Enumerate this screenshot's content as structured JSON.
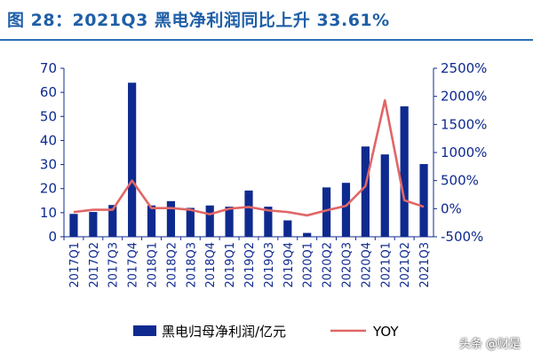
{
  "figure_title": "图 28：2021Q3 黑电净利润同比上升 33.61%",
  "watermark": "头条 @财是",
  "colors": {
    "bar": "#0f2a8f",
    "line": "#e06666",
    "title": "#1f5fa8",
    "axis": "#0f2a8f"
  },
  "chart_data": {
    "type": "bar",
    "title": "图 28：2021Q3 黑电净利润同比上升 33.61%",
    "categories": [
      "2017Q1",
      "2017Q2",
      "2017Q3",
      "2017Q4",
      "2018Q1",
      "2018Q2",
      "2018Q3",
      "2018Q4",
      "2019Q1",
      "2019Q2",
      "2019Q3",
      "2019Q4",
      "2020Q1",
      "2020Q2",
      "2020Q3",
      "2020Q4",
      "2021Q1",
      "2021Q2",
      "2021Q3"
    ],
    "series": [
      {
        "name": "黑电归母净利润/亿元",
        "type": "bar",
        "axis": "left",
        "values": [
          9.5,
          10.3,
          13.2,
          64,
          13,
          14.8,
          12,
          13,
          12.5,
          19.2,
          12.5,
          6.8,
          1.6,
          20.5,
          22.4,
          37.5,
          34.2,
          54.2,
          30.2
        ]
      },
      {
        "name": "YOY",
        "type": "line",
        "axis": "right",
        "values": [
          -60,
          -20,
          -20,
          500,
          10,
          10,
          -20,
          -100,
          0,
          30,
          -30,
          -60,
          -120,
          -30,
          50,
          400,
          1930,
          150,
          34
        ]
      }
    ],
    "y_left": {
      "min": 0,
      "max": 70,
      "ticks": [
        0,
        10,
        20,
        30,
        40,
        50,
        60,
        70
      ]
    },
    "y_right": {
      "min": -500,
      "max": 2500,
      "ticks": [
        -500,
        0,
        500,
        1000,
        1500,
        2000,
        2500
      ],
      "tick_labels": [
        "-500%",
        "0%",
        "500%",
        "1000%",
        "1500%",
        "2000%",
        "2500%"
      ]
    },
    "legend_position": "bottom",
    "grid": false
  }
}
